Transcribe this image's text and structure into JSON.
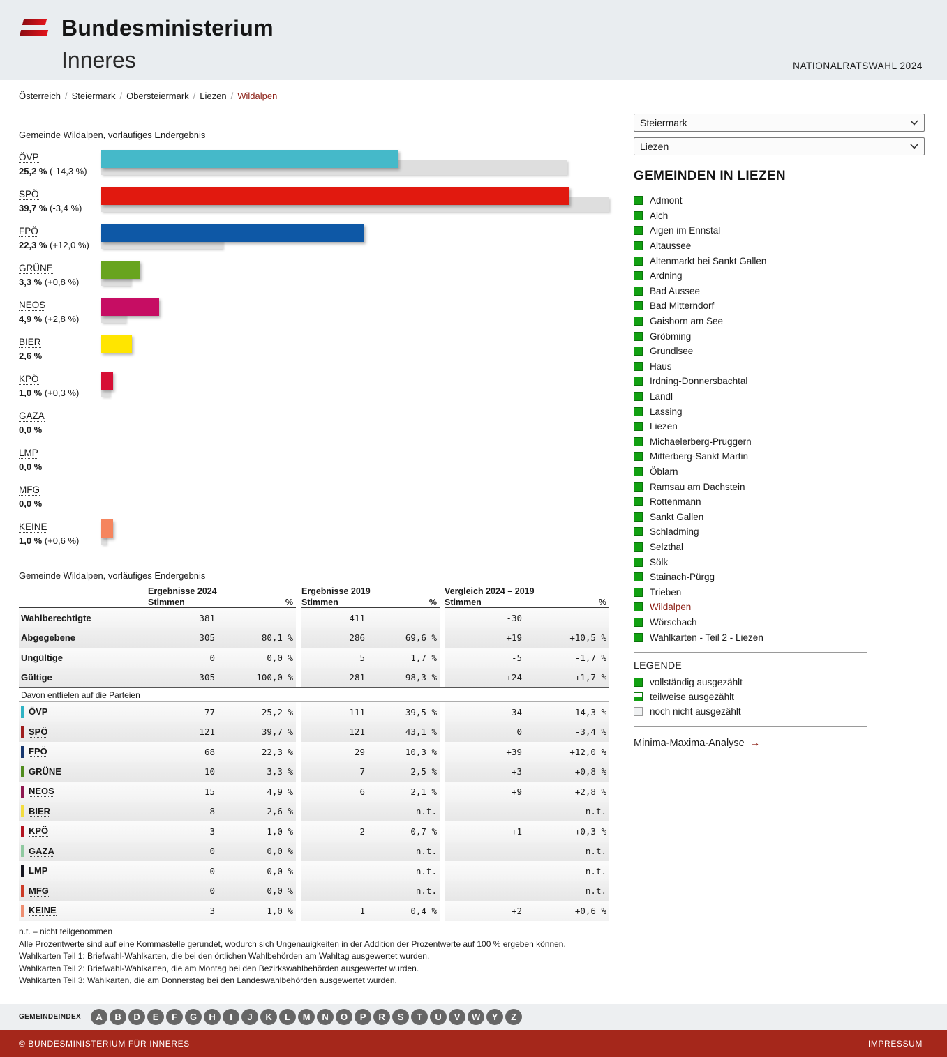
{
  "header": {
    "ministry_line1": "Bundesministerium",
    "ministry_line2": "Inneres",
    "election_label": "NATIONALRATSWAHL 2024"
  },
  "breadcrumb": {
    "items": [
      "Österreich",
      "Steiermark",
      "Obersteiermark",
      "Liezen"
    ],
    "current": "Wildalpen",
    "separator": "/"
  },
  "selectors": {
    "state_value": "Steiermark",
    "district_value": "Liezen"
  },
  "chart": {
    "title": "Gemeinde Wildalpen, vorläufiges Endergebnis",
    "max_pct": 43.1,
    "parties": [
      {
        "name": "ÖVP",
        "pct": 25.2,
        "pct_label": "25,2 %",
        "diff_label": "(-14,3 %)",
        "prev_pct": 39.5,
        "color": "#45b9c9"
      },
      {
        "name": "SPÖ",
        "pct": 39.7,
        "pct_label": "39,7 %",
        "diff_label": "(-3,4 %)",
        "prev_pct": 43.1,
        "color": "#e1190f"
      },
      {
        "name": "FPÖ",
        "pct": 22.3,
        "pct_label": "22,3 %",
        "diff_label": "(+12,0 %)",
        "prev_pct": 10.3,
        "color": "#0e58a6"
      },
      {
        "name": "GRÜNE",
        "pct": 3.3,
        "pct_label": "3,3 %",
        "diff_label": "(+0,8 %)",
        "prev_pct": 2.5,
        "color": "#68a41e"
      },
      {
        "name": "NEOS",
        "pct": 4.9,
        "pct_label": "4,9 %",
        "diff_label": "(+2,8 %)",
        "prev_pct": 2.1,
        "color": "#c60d63"
      },
      {
        "name": "BIER",
        "pct": 2.6,
        "pct_label": "2,6 %",
        "diff_label": "",
        "prev_pct": null,
        "color": "#ffe500"
      },
      {
        "name": "KPÖ",
        "pct": 1.0,
        "pct_label": "1,0 %",
        "diff_label": "(+0,3 %)",
        "prev_pct": 0.7,
        "color": "#d60f35"
      },
      {
        "name": "GAZA",
        "pct": 0.0,
        "pct_label": "0,0 %",
        "diff_label": "",
        "prev_pct": null,
        "color": "#8fc9a0"
      },
      {
        "name": "LMP",
        "pct": 0.0,
        "pct_label": "0,0 %",
        "diff_label": "",
        "prev_pct": null,
        "color": "#15151f"
      },
      {
        "name": "MFG",
        "pct": 0.0,
        "pct_label": "0,0 %",
        "diff_label": "",
        "prev_pct": null,
        "color": "#cc3a26"
      },
      {
        "name": "KEINE",
        "pct": 1.0,
        "pct_label": "1,0 %",
        "diff_label": "(+0,6 %)",
        "prev_pct": 0.4,
        "color": "#f5855e"
      }
    ]
  },
  "table": {
    "title": "Gemeinde Wildalpen, vorläufiges Endergebnis",
    "col_groups": [
      {
        "title": "Ergebnisse 2024",
        "cols": [
          "Stimmen",
          "%"
        ]
      },
      {
        "title": "Ergebnisse 2019",
        "cols": [
          "Stimmen",
          "%"
        ]
      },
      {
        "title": "Vergleich 2024 – 2019",
        "cols": [
          "Stimmen",
          "%"
        ]
      }
    ],
    "summary_rows": [
      {
        "label": "Wahlberechtigte",
        "cells": [
          "381",
          "",
          "411",
          "",
          "-30",
          ""
        ]
      },
      {
        "label": "Abgegebene",
        "cells": [
          "305",
          "80,1 %",
          "286",
          "69,6 %",
          "+19",
          "+10,5 %"
        ]
      },
      {
        "label": "Ungültige",
        "cells": [
          "0",
          "0,0 %",
          "5",
          "1,7 %",
          "-5",
          "-1,7 %"
        ]
      },
      {
        "label": "Gültige",
        "cells": [
          "305",
          "100,0 %",
          "281",
          "98,3 %",
          "+24",
          "+1,7 %"
        ]
      }
    ],
    "section_label": "Davon entfielen auf die Parteien",
    "party_rows": [
      {
        "label": "ÖVP",
        "chip_color": "#2fb3c4",
        "cells": [
          "77",
          "25,2 %",
          "111",
          "39,5 %",
          "-34",
          "-14,3 %"
        ]
      },
      {
        "label": "SPÖ",
        "chip_color": "#9e1c1c",
        "cells": [
          "121",
          "39,7 %",
          "121",
          "43,1 %",
          "0",
          "-3,4 %"
        ]
      },
      {
        "label": "FPÖ",
        "chip_color": "#17366e",
        "cells": [
          "68",
          "22,3 %",
          "29",
          "10,3 %",
          "+39",
          "+12,0 %"
        ]
      },
      {
        "label": "GRÜNE",
        "chip_color": "#4f8c1d",
        "cells": [
          "10",
          "3,3 %",
          "7",
          "2,5 %",
          "+3",
          "+0,8 %"
        ]
      },
      {
        "label": "NEOS",
        "chip_color": "#8e1750",
        "cells": [
          "15",
          "4,9 %",
          "6",
          "2,1 %",
          "+9",
          "+2,8 %"
        ]
      },
      {
        "label": "BIER",
        "chip_color": "#f3dd3e",
        "cells": [
          "8",
          "2,6 %",
          "",
          "n.t.",
          "",
          "n.t."
        ]
      },
      {
        "label": "KPÖ",
        "chip_color": "#b2131f",
        "cells": [
          "3",
          "1,0 %",
          "2",
          "0,7 %",
          "+1",
          "+0,3 %"
        ]
      },
      {
        "label": "GAZA",
        "chip_color": "#8fc9a0",
        "cells": [
          "0",
          "0,0 %",
          "",
          "n.t.",
          "",
          "n.t."
        ]
      },
      {
        "label": "LMP",
        "chip_color": "#15151f",
        "cells": [
          "0",
          "0,0 %",
          "",
          "n.t.",
          "",
          "n.t."
        ]
      },
      {
        "label": "MFG",
        "chip_color": "#cc3a26",
        "cells": [
          "0",
          "0,0 %",
          "",
          "n.t.",
          "",
          "n.t."
        ]
      },
      {
        "label": "KEINE",
        "chip_color": "#ee8e71",
        "cells": [
          "3",
          "1,0 %",
          "1",
          "0,4 %",
          "+2",
          "+0,6 %"
        ]
      }
    ],
    "footnotes": [
      "n.t. – nicht teilgenommen",
      "Alle Prozentwerte sind auf eine Kommastelle gerundet, wodurch sich Ungenauigkeiten in der Addition der Prozentwerte auf 100 % ergeben können.",
      "Wahlkarten Teil 1: Briefwahl-Wahlkarten, die bei den örtlichen Wahlbehörden am Wahltag ausgewertet wurden.",
      "Wahlkarten Teil 2: Briefwahl-Wahlkarten, die am Montag bei den Bezirkswahlbehörden ausgewertet wurden.",
      "Wahlkarten Teil 3: Wahlkarten, die am Donnerstag bei den Landeswahlbehörden ausgewertet wurden."
    ]
  },
  "sidebar": {
    "heading": "GEMEINDEN IN LIEZEN",
    "current_municipality": "Wildalpen",
    "municipalities": [
      "Admont",
      "Aich",
      "Aigen im Ennstal",
      "Altaussee",
      "Altenmarkt bei Sankt Gallen",
      "Ardning",
      "Bad Aussee",
      "Bad Mitterndorf",
      "Gaishorn am See",
      "Gröbming",
      "Grundlsee",
      "Haus",
      "Irdning-Donnersbachtal",
      "Landl",
      "Lassing",
      "Liezen",
      "Michaelerberg-Pruggern",
      "Mitterberg-Sankt Martin",
      "Öblarn",
      "Ramsau am Dachstein",
      "Rottenmann",
      "Sankt Gallen",
      "Schladming",
      "Selzthal",
      "Sölk",
      "Stainach-Pürgg",
      "Trieben",
      "Wildalpen",
      "Wörschach",
      "Wahlkarten - Teil 2 - Liezen"
    ],
    "legend": {
      "title": "LEGENDE",
      "items": [
        {
          "label": "vollständig ausgezählt",
          "type": "full"
        },
        {
          "label": "teilweise ausgezählt",
          "type": "half"
        },
        {
          "label": "noch nicht ausgezählt",
          "type": "empty"
        }
      ]
    },
    "analysis_link": "Minima-Maxima-Analyse",
    "analysis_arrow": "→"
  },
  "index": {
    "label": "GEMEINDEINDEX",
    "letters": [
      "A",
      "B",
      "D",
      "E",
      "F",
      "G",
      "H",
      "I",
      "J",
      "K",
      "L",
      "M",
      "N",
      "O",
      "P",
      "R",
      "S",
      "T",
      "U",
      "V",
      "W",
      "Y",
      "Z"
    ]
  },
  "footer": {
    "copyright": "© BUNDESMINISTERIUM FÜR INNERES",
    "impressum": "IMPRESSUM"
  }
}
